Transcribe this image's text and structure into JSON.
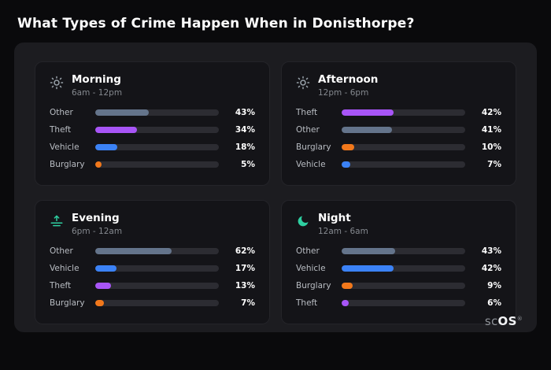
{
  "page": {
    "title": "What Types of Crime Happen When in Donisthorpe?"
  },
  "brand": {
    "prefix": "sc",
    "suffix": "OS",
    "registered_mark": "®"
  },
  "colors": {
    "page_background": "#0a0a0c",
    "card_background": "#1c1c20",
    "panel_background": "#141418",
    "bar_track": "#2c2c32",
    "other": "#64748b",
    "theft": "#a855f7",
    "vehicle": "#3b82f6",
    "burglary": "#f2781b",
    "icon_grey": "#9aa3ab",
    "icon_teal": "#2ecfa1"
  },
  "chart_data": [
    {
      "type": "bar",
      "orientation": "horizontal",
      "title": "Morning",
      "subtitle": "6am - 12pm",
      "icon": "sun-icon",
      "icon_color": "#9aa3ab",
      "unit": "%",
      "xlim": [
        0,
        100
      ],
      "bars": [
        {
          "label": "Other",
          "value": 43,
          "color": "#64748b"
        },
        {
          "label": "Theft",
          "value": 34,
          "color": "#a855f7"
        },
        {
          "label": "Vehicle",
          "value": 18,
          "color": "#3b82f6"
        },
        {
          "label": "Burglary",
          "value": 5,
          "color": "#f2781b"
        }
      ]
    },
    {
      "type": "bar",
      "orientation": "horizontal",
      "title": "Afternoon",
      "subtitle": "12pm - 6pm",
      "icon": "sun-icon",
      "icon_color": "#9aa3ab",
      "unit": "%",
      "xlim": [
        0,
        100
      ],
      "bars": [
        {
          "label": "Theft",
          "value": 42,
          "color": "#a855f7"
        },
        {
          "label": "Other",
          "value": 41,
          "color": "#64748b"
        },
        {
          "label": "Burglary",
          "value": 10,
          "color": "#f2781b"
        },
        {
          "label": "Vehicle",
          "value": 7,
          "color": "#3b82f6"
        }
      ]
    },
    {
      "type": "bar",
      "orientation": "horizontal",
      "title": "Evening",
      "subtitle": "6pm - 12am",
      "icon": "sunset-icon",
      "icon_color": "#2ecfa1",
      "unit": "%",
      "xlim": [
        0,
        100
      ],
      "bars": [
        {
          "label": "Other",
          "value": 62,
          "color": "#64748b"
        },
        {
          "label": "Vehicle",
          "value": 17,
          "color": "#3b82f6"
        },
        {
          "label": "Theft",
          "value": 13,
          "color": "#a855f7"
        },
        {
          "label": "Burglary",
          "value": 7,
          "color": "#f2781b"
        }
      ]
    },
    {
      "type": "bar",
      "orientation": "horizontal",
      "title": "Night",
      "subtitle": "12am - 6am",
      "icon": "moon-icon",
      "icon_color": "#2ecfa1",
      "unit": "%",
      "xlim": [
        0,
        100
      ],
      "bars": [
        {
          "label": "Other",
          "value": 43,
          "color": "#64748b"
        },
        {
          "label": "Vehicle",
          "value": 42,
          "color": "#3b82f6"
        },
        {
          "label": "Burglary",
          "value": 9,
          "color": "#f2781b"
        },
        {
          "label": "Theft",
          "value": 6,
          "color": "#a855f7"
        }
      ]
    }
  ]
}
